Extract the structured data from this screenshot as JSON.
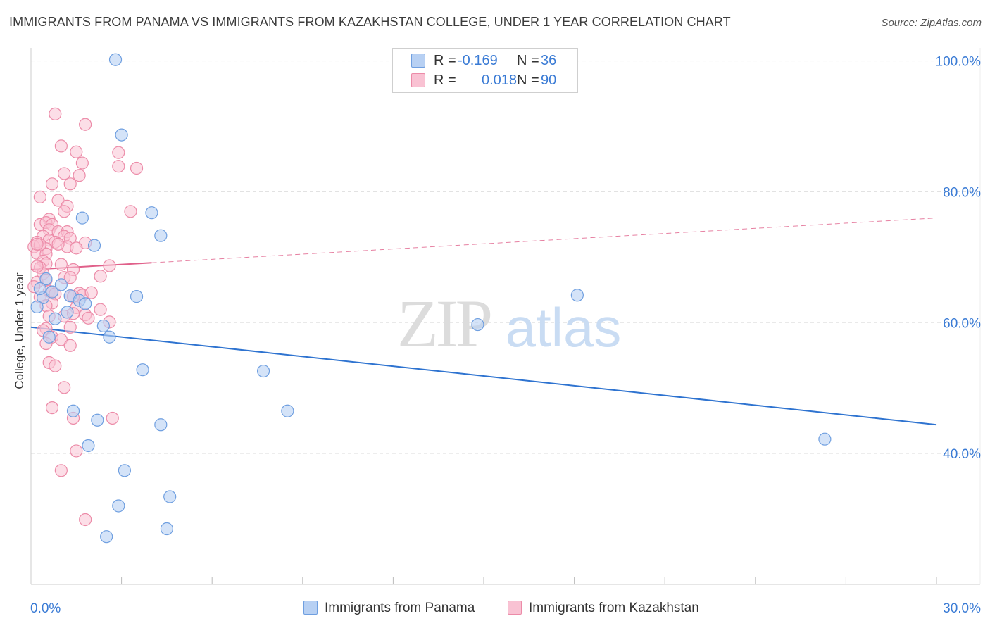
{
  "header": {
    "title": "IMMIGRANTS FROM PANAMA VS IMMIGRANTS FROM KAZAKHSTAN COLLEGE, UNDER 1 YEAR CORRELATION CHART",
    "source": "Source: ZipAtlas.com"
  },
  "watermark": {
    "zip": "ZIP",
    "atlas": "atlas"
  },
  "legend": {
    "rows": [
      {
        "r_label": "R =",
        "r_value": "-0.169",
        "n_label": "N =",
        "n_value": "36"
      },
      {
        "r_label": "R =",
        "r_value": "0.018",
        "n_label": "N =",
        "n_value": "90"
      }
    ]
  },
  "bottom_legend": {
    "panama": "Immigrants from Panama",
    "kazakhstan": "Immigrants from Kazakhstan"
  },
  "colors": {
    "panama_fill": "#b7d0f3",
    "panama_stroke": "#6f9fe0",
    "panama_line": "#2e73d0",
    "kazakhstan_fill": "#f9c2d3",
    "kazakhstan_stroke": "#ec8ba8",
    "kazakhstan_line": "#e0608a",
    "tick_label": "#3a7bd5"
  },
  "chart_data": {
    "type": "scatter",
    "title": "IMMIGRANTS FROM PANAMA VS IMMIGRANTS FROM KAZAKHSTAN COLLEGE, UNDER 1 YEAR CORRELATION CHART",
    "xlabel": "",
    "ylabel": "College, Under 1 year",
    "xlim": [
      0,
      30
    ],
    "ylim": [
      20,
      102
    ],
    "x_tick_labels": [
      "0.0%",
      "30.0%"
    ],
    "y_tick_labels": [
      {
        "value": 100,
        "label": "100.0%"
      },
      {
        "value": 80,
        "label": "80.0%"
      },
      {
        "value": 60,
        "label": "60.0%"
      },
      {
        "value": 40,
        "label": "40.0%"
      }
    ],
    "series": [
      {
        "name": "Immigrants from Panama",
        "r": -0.169,
        "n": 36,
        "trend": {
          "x": [
            0,
            30
          ],
          "y": [
            59.3,
            44.4
          ],
          "dashed_to": null
        },
        "points": [
          [
            2.8,
            100.2
          ],
          [
            3.0,
            88.7
          ],
          [
            1.7,
            76.0
          ],
          [
            4.0,
            76.8
          ],
          [
            4.3,
            73.3
          ],
          [
            2.1,
            71.8
          ],
          [
            0.4,
            63.8
          ],
          [
            0.7,
            64.7
          ],
          [
            1.0,
            65.8
          ],
          [
            1.3,
            64.1
          ],
          [
            1.6,
            63.4
          ],
          [
            1.8,
            62.9
          ],
          [
            0.2,
            62.4
          ],
          [
            0.5,
            66.7
          ],
          [
            1.2,
            61.6
          ],
          [
            0.8,
            60.6
          ],
          [
            2.4,
            59.5
          ],
          [
            2.6,
            57.8
          ],
          [
            0.6,
            57.8
          ],
          [
            3.5,
            64.0
          ],
          [
            3.7,
            52.8
          ],
          [
            7.7,
            52.6
          ],
          [
            14.8,
            59.7
          ],
          [
            18.1,
            64.2
          ],
          [
            1.4,
            46.5
          ],
          [
            2.2,
            45.1
          ],
          [
            4.3,
            44.4
          ],
          [
            8.5,
            46.5
          ],
          [
            26.3,
            42.2
          ],
          [
            1.9,
            41.2
          ],
          [
            3.1,
            37.4
          ],
          [
            2.9,
            32.0
          ],
          [
            4.6,
            33.4
          ],
          [
            2.5,
            27.3
          ],
          [
            4.5,
            28.5
          ],
          [
            0.3,
            65.2
          ]
        ]
      },
      {
        "name": "Immigrants from Kazakhstan",
        "r": 0.018,
        "n": 90,
        "trend": {
          "x": [
            0,
            30
          ],
          "y": [
            68.1,
            76.0
          ],
          "solid_to_x": 4.0
        },
        "points": [
          [
            0.8,
            91.9
          ],
          [
            1.8,
            90.3
          ],
          [
            1.0,
            87.0
          ],
          [
            1.5,
            86.1
          ],
          [
            2.9,
            86.0
          ],
          [
            1.7,
            84.4
          ],
          [
            2.9,
            83.9
          ],
          [
            3.5,
            83.6
          ],
          [
            1.1,
            82.8
          ],
          [
            1.6,
            82.5
          ],
          [
            0.7,
            81.2
          ],
          [
            1.3,
            81.2
          ],
          [
            0.3,
            79.2
          ],
          [
            0.9,
            78.7
          ],
          [
            1.2,
            77.8
          ],
          [
            1.1,
            77.0
          ],
          [
            3.3,
            77.0
          ],
          [
            0.6,
            75.8
          ],
          [
            0.3,
            75.0
          ],
          [
            0.5,
            75.3
          ],
          [
            0.7,
            75.0
          ],
          [
            0.6,
            74.2
          ],
          [
            0.9,
            73.9
          ],
          [
            1.2,
            73.9
          ],
          [
            1.1,
            73.2
          ],
          [
            0.4,
            73.2
          ],
          [
            1.3,
            72.9
          ],
          [
            0.6,
            72.6
          ],
          [
            0.2,
            72.3
          ],
          [
            0.8,
            72.3
          ],
          [
            1.8,
            72.2
          ],
          [
            0.3,
            71.9
          ],
          [
            0.1,
            71.6
          ],
          [
            1.2,
            71.6
          ],
          [
            0.5,
            71.3
          ],
          [
            0.2,
            70.6
          ],
          [
            0.5,
            70.5
          ],
          [
            0.4,
            69.4
          ],
          [
            0.5,
            69.0
          ],
          [
            1.0,
            68.9
          ],
          [
            2.6,
            68.7
          ],
          [
            0.3,
            68.4
          ],
          [
            1.4,
            68.1
          ],
          [
            0.4,
            67.5
          ],
          [
            2.3,
            67.1
          ],
          [
            1.1,
            66.9
          ],
          [
            0.5,
            66.5
          ],
          [
            1.3,
            66.9
          ],
          [
            0.2,
            66.2
          ],
          [
            0.1,
            65.5
          ],
          [
            0.6,
            64.8
          ],
          [
            0.7,
            64.7
          ],
          [
            1.6,
            64.5
          ],
          [
            1.3,
            64.1
          ],
          [
            0.8,
            64.4
          ],
          [
            1.7,
            64.2
          ],
          [
            1.4,
            64.0
          ],
          [
            2.0,
            64.6
          ],
          [
            0.3,
            63.9
          ],
          [
            0.7,
            63.0
          ],
          [
            0.5,
            62.6
          ],
          [
            1.5,
            62.3
          ],
          [
            2.3,
            62.0
          ],
          [
            1.8,
            61.2
          ],
          [
            0.6,
            61.0
          ],
          [
            1.1,
            61.0
          ],
          [
            1.4,
            61.4
          ],
          [
            2.6,
            60.1
          ],
          [
            1.9,
            60.7
          ],
          [
            0.5,
            59.1
          ],
          [
            1.3,
            59.3
          ],
          [
            0.4,
            58.8
          ],
          [
            0.7,
            57.8
          ],
          [
            1.0,
            57.4
          ],
          [
            0.5,
            56.8
          ],
          [
            1.3,
            56.5
          ],
          [
            0.6,
            53.9
          ],
          [
            0.8,
            53.4
          ],
          [
            1.1,
            50.1
          ],
          [
            0.7,
            47.0
          ],
          [
            1.4,
            45.4
          ],
          [
            2.7,
            45.4
          ],
          [
            1.5,
            40.4
          ],
          [
            1.0,
            37.4
          ],
          [
            1.8,
            29.9
          ],
          [
            0.2,
            68.6
          ],
          [
            0.3,
            71.9
          ],
          [
            0.9,
            72.0
          ],
          [
            1.5,
            71.4
          ],
          [
            0.2,
            72.0
          ]
        ]
      }
    ],
    "legend_position": "top-center",
    "grid": true
  }
}
